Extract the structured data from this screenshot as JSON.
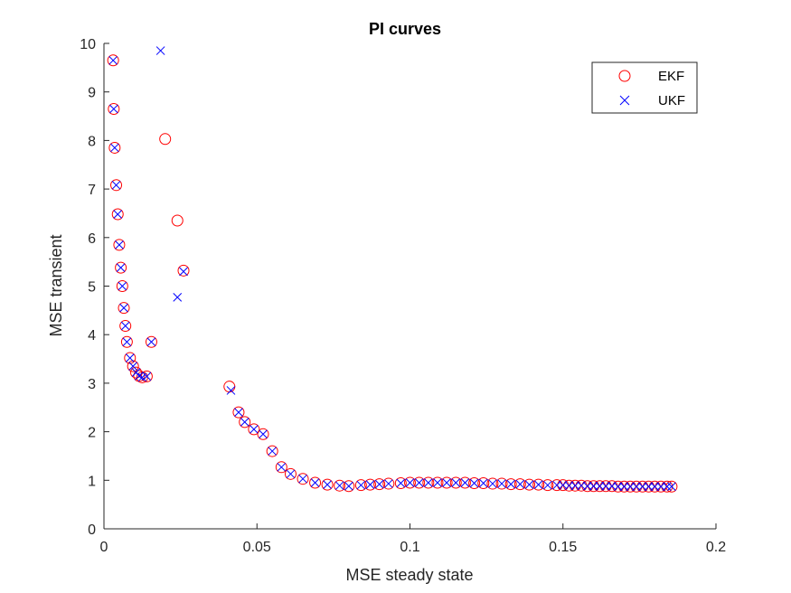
{
  "chart_data": {
    "type": "scatter",
    "title": "PI curves",
    "xlabel": "MSE steady state",
    "ylabel": "MSE transient",
    "xlim": [
      0,
      0.2
    ],
    "ylim": [
      0,
      10
    ],
    "xticks": [
      0,
      0.05,
      0.1,
      0.15,
      0.2
    ],
    "xtick_labels": [
      "0",
      "0.05",
      "0.1",
      "0.15",
      "0.2"
    ],
    "yticks": [
      0,
      1,
      2,
      3,
      4,
      5,
      6,
      7,
      8,
      9,
      10
    ],
    "ytick_labels": [
      "0",
      "1",
      "2",
      "3",
      "4",
      "5",
      "6",
      "7",
      "8",
      "9",
      "10"
    ],
    "grid": false,
    "legend_position": "top-right",
    "series": [
      {
        "name": "EKF",
        "marker": "circle",
        "color": "#ff0000",
        "points": [
          [
            0.003,
            9.65
          ],
          [
            0.0032,
            8.65
          ],
          [
            0.0035,
            7.85
          ],
          [
            0.004,
            7.08
          ],
          [
            0.0045,
            6.48
          ],
          [
            0.005,
            5.85
          ],
          [
            0.0055,
            5.38
          ],
          [
            0.006,
            5.0
          ],
          [
            0.0065,
            4.55
          ],
          [
            0.007,
            4.18
          ],
          [
            0.0075,
            3.85
          ],
          [
            0.0085,
            3.52
          ],
          [
            0.0095,
            3.35
          ],
          [
            0.0105,
            3.22
          ],
          [
            0.0115,
            3.15
          ],
          [
            0.0125,
            3.12
          ],
          [
            0.014,
            3.14
          ],
          [
            0.0155,
            3.85
          ],
          [
            0.02,
            8.03
          ],
          [
            0.024,
            6.35
          ],
          [
            0.026,
            5.32
          ],
          [
            0.041,
            2.93
          ],
          [
            0.044,
            2.4
          ],
          [
            0.046,
            2.2
          ],
          [
            0.049,
            2.05
          ],
          [
            0.052,
            1.95
          ],
          [
            0.055,
            1.6
          ],
          [
            0.058,
            1.27
          ],
          [
            0.061,
            1.13
          ],
          [
            0.065,
            1.03
          ],
          [
            0.069,
            0.95
          ],
          [
            0.073,
            0.91
          ],
          [
            0.077,
            0.89
          ],
          [
            0.08,
            0.88
          ],
          [
            0.084,
            0.9
          ],
          [
            0.087,
            0.91
          ],
          [
            0.09,
            0.92
          ],
          [
            0.093,
            0.93
          ],
          [
            0.097,
            0.94
          ],
          [
            0.1,
            0.95
          ],
          [
            0.103,
            0.95
          ],
          [
            0.106,
            0.95
          ],
          [
            0.109,
            0.95
          ],
          [
            0.112,
            0.95
          ],
          [
            0.115,
            0.95
          ],
          [
            0.118,
            0.95
          ],
          [
            0.121,
            0.94
          ],
          [
            0.124,
            0.94
          ],
          [
            0.127,
            0.93
          ],
          [
            0.13,
            0.93
          ],
          [
            0.133,
            0.92
          ],
          [
            0.136,
            0.92
          ],
          [
            0.139,
            0.91
          ],
          [
            0.142,
            0.91
          ],
          [
            0.145,
            0.9
          ],
          [
            0.148,
            0.9
          ],
          [
            0.15,
            0.9
          ],
          [
            0.152,
            0.89
          ],
          [
            0.154,
            0.89
          ],
          [
            0.156,
            0.89
          ],
          [
            0.158,
            0.88
          ],
          [
            0.16,
            0.88
          ],
          [
            0.162,
            0.88
          ],
          [
            0.164,
            0.88
          ],
          [
            0.166,
            0.88
          ],
          [
            0.168,
            0.87
          ],
          [
            0.17,
            0.87
          ],
          [
            0.172,
            0.87
          ],
          [
            0.174,
            0.87
          ],
          [
            0.176,
            0.87
          ],
          [
            0.178,
            0.87
          ],
          [
            0.18,
            0.87
          ],
          [
            0.182,
            0.87
          ],
          [
            0.184,
            0.87
          ],
          [
            0.1855,
            0.87
          ]
        ]
      },
      {
        "name": "UKF",
        "marker": "x",
        "color": "#0000ff",
        "points": [
          [
            0.003,
            9.65
          ],
          [
            0.0032,
            8.65
          ],
          [
            0.0035,
            7.85
          ],
          [
            0.004,
            7.08
          ],
          [
            0.0045,
            6.48
          ],
          [
            0.005,
            5.85
          ],
          [
            0.0055,
            5.38
          ],
          [
            0.006,
            5.0
          ],
          [
            0.0065,
            4.55
          ],
          [
            0.007,
            4.18
          ],
          [
            0.0075,
            3.85
          ],
          [
            0.0085,
            3.52
          ],
          [
            0.0095,
            3.35
          ],
          [
            0.0105,
            3.22
          ],
          [
            0.0115,
            3.15
          ],
          [
            0.0125,
            3.12
          ],
          [
            0.014,
            3.14
          ],
          [
            0.0155,
            3.85
          ],
          [
            0.0185,
            9.85
          ],
          [
            0.024,
            4.77
          ],
          [
            0.026,
            5.3
          ],
          [
            0.0415,
            2.85
          ],
          [
            0.044,
            2.4
          ],
          [
            0.046,
            2.2
          ],
          [
            0.049,
            2.05
          ],
          [
            0.052,
            1.95
          ],
          [
            0.055,
            1.6
          ],
          [
            0.058,
            1.27
          ],
          [
            0.061,
            1.13
          ],
          [
            0.065,
            1.03
          ],
          [
            0.069,
            0.95
          ],
          [
            0.073,
            0.91
          ],
          [
            0.077,
            0.89
          ],
          [
            0.08,
            0.88
          ],
          [
            0.084,
            0.9
          ],
          [
            0.087,
            0.91
          ],
          [
            0.09,
            0.92
          ],
          [
            0.093,
            0.93
          ],
          [
            0.097,
            0.94
          ],
          [
            0.1,
            0.95
          ],
          [
            0.103,
            0.95
          ],
          [
            0.106,
            0.95
          ],
          [
            0.109,
            0.95
          ],
          [
            0.112,
            0.95
          ],
          [
            0.115,
            0.95
          ],
          [
            0.118,
            0.95
          ],
          [
            0.121,
            0.94
          ],
          [
            0.124,
            0.94
          ],
          [
            0.127,
            0.93
          ],
          [
            0.13,
            0.93
          ],
          [
            0.133,
            0.92
          ],
          [
            0.136,
            0.92
          ],
          [
            0.139,
            0.91
          ],
          [
            0.142,
            0.91
          ],
          [
            0.145,
            0.9
          ],
          [
            0.148,
            0.9
          ],
          [
            0.15,
            0.9
          ],
          [
            0.152,
            0.89
          ],
          [
            0.154,
            0.89
          ],
          [
            0.156,
            0.89
          ],
          [
            0.158,
            0.88
          ],
          [
            0.16,
            0.88
          ],
          [
            0.162,
            0.88
          ],
          [
            0.164,
            0.88
          ],
          [
            0.166,
            0.88
          ],
          [
            0.168,
            0.87
          ],
          [
            0.17,
            0.87
          ],
          [
            0.172,
            0.87
          ],
          [
            0.174,
            0.87
          ],
          [
            0.176,
            0.87
          ],
          [
            0.178,
            0.87
          ],
          [
            0.18,
            0.87
          ],
          [
            0.182,
            0.87
          ],
          [
            0.184,
            0.87
          ],
          [
            0.1855,
            0.87
          ]
        ]
      }
    ]
  }
}
